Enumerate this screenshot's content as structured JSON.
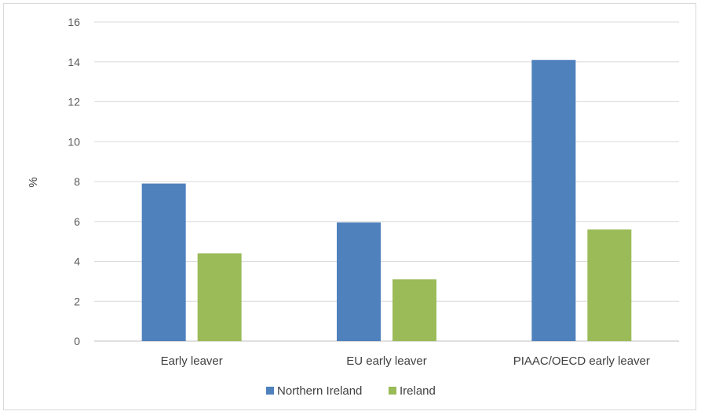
{
  "chart_data": {
    "type": "bar",
    "categories": [
      "Early leaver",
      "EU early leaver",
      "PIAAC/OECD early leaver"
    ],
    "series": [
      {
        "name": "Northern Ireland",
        "color": "#4f81bd",
        "values": [
          7.9,
          5.95,
          14.1
        ]
      },
      {
        "name": "Ireland",
        "color": "#9bbb59",
        "values": [
          4.4,
          3.1,
          5.6
        ]
      }
    ],
    "ylabel": "%",
    "xlabel": "",
    "ylim": [
      0,
      16
    ],
    "yticks": [
      "0",
      "2",
      "4",
      "6",
      "8",
      "10",
      "12",
      "14",
      "16"
    ],
    "grid": true,
    "legend_position": "bottom"
  }
}
